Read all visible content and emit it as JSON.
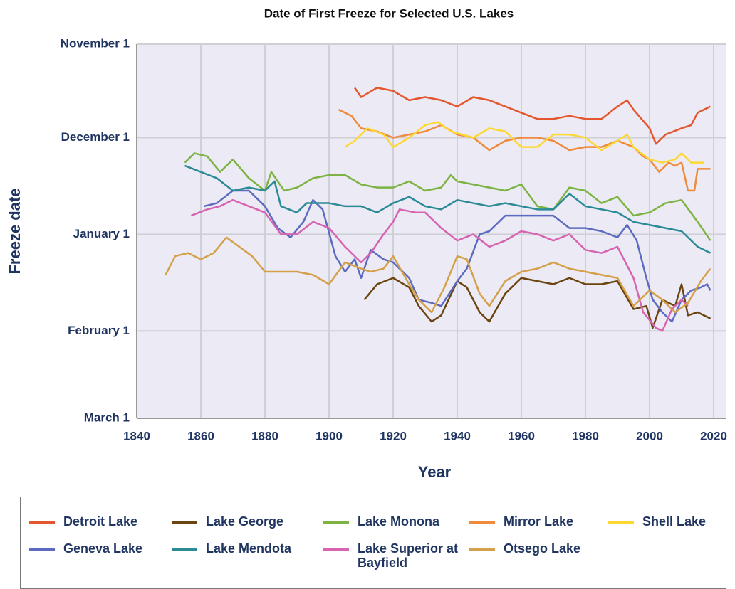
{
  "chart_data": {
    "type": "line",
    "title": "Date of First Freeze for Selected U.S. Lakes",
    "x_label": "Year",
    "y_label": "Freeze date",
    "xlim": [
      1840,
      2024
    ],
    "xticks": [
      1840,
      1860,
      1880,
      1900,
      1920,
      1940,
      1960,
      1980,
      2000,
      2020
    ],
    "ylim": [
      0,
      120
    ],
    "y_inverted": true,
    "yticks": [
      {
        "value": 0,
        "label": "November 1"
      },
      {
        "value": 30,
        "label": "December 1"
      },
      {
        "value": 61,
        "label": "January 1"
      },
      {
        "value": 92,
        "label": "February 1"
      },
      {
        "value": 120,
        "label": "March 1"
      }
    ],
    "grid": true,
    "series": [
      {
        "name": "Detroit Lake",
        "color": "#e4572e",
        "x": [
          1908,
          1910,
          1915,
          1920,
          1925,
          1930,
          1935,
          1940,
          1945,
          1950,
          1955,
          1960,
          1965,
          1970,
          1975,
          1980,
          1985,
          1990,
          1993,
          1995,
          2000,
          2002,
          2005,
          2010,
          2013,
          2015,
          2019
        ],
        "values": [
          14,
          17,
          14,
          15,
          18,
          17,
          18,
          20,
          17,
          18,
          20,
          22,
          24,
          24,
          23,
          24,
          24,
          20,
          18,
          21,
          27,
          32,
          29,
          27,
          26,
          22,
          20
        ]
      },
      {
        "name": "Lake George",
        "color": "#6b4410",
        "x": [
          1911,
          1915,
          1920,
          1925,
          1928,
          1932,
          1935,
          1940,
          1943,
          1947,
          1950,
          1955,
          1960,
          1965,
          1970,
          1975,
          1980,
          1985,
          1990,
          1995,
          1999,
          2001,
          2004,
          2008,
          2010,
          2012,
          2015,
          2019
        ],
        "values": [
          82,
          77,
          75,
          78,
          84,
          89,
          87,
          76,
          78,
          86,
          89,
          80,
          75,
          76,
          77,
          75,
          77,
          77,
          76,
          85,
          84,
          91,
          82,
          84,
          77,
          87,
          86,
          88
        ]
      },
      {
        "name": "Lake Monona",
        "color": "#7cb342",
        "x": [
          1855,
          1858,
          1862,
          1866,
          1870,
          1875,
          1880,
          1882,
          1886,
          1890,
          1895,
          1900,
          1905,
          1910,
          1915,
          1920,
          1925,
          1930,
          1935,
          1938,
          1940,
          1945,
          1950,
          1955,
          1960,
          1965,
          1970,
          1975,
          1980,
          1985,
          1990,
          1995,
          2000,
          2005,
          2010,
          2015,
          2019
        ],
        "values": [
          38,
          35,
          36,
          41,
          37,
          43,
          47,
          41,
          47,
          46,
          43,
          42,
          42,
          45,
          46,
          46,
          44,
          47,
          46,
          42,
          44,
          45,
          46,
          47,
          45,
          52,
          53,
          46,
          47,
          51,
          49,
          55,
          54,
          51,
          50,
          57,
          63
        ]
      },
      {
        "name": "Mirror Lake",
        "color": "#f08a3c",
        "x": [
          1903,
          1907,
          1910,
          1915,
          1920,
          1925,
          1930,
          1935,
          1940,
          1945,
          1950,
          1955,
          1960,
          1965,
          1970,
          1975,
          1980,
          1985,
          1990,
          1995,
          1998,
          2000,
          2003,
          2006,
          2008,
          2010,
          2012,
          2014,
          2015,
          2019
        ],
        "values": [
          21,
          23,
          27,
          28,
          30,
          29,
          28,
          26,
          29,
          30,
          34,
          31,
          30,
          30,
          31,
          34,
          33,
          33,
          31,
          33,
          36,
          37,
          41,
          38,
          39,
          38,
          47,
          47,
          40,
          40
        ]
      },
      {
        "name": "Shell Lake",
        "color": "#fdd835",
        "x": [
          1905,
          1908,
          1912,
          1917,
          1920,
          1925,
          1930,
          1934,
          1938,
          1945,
          1950,
          1955,
          1960,
          1965,
          1970,
          1975,
          1980,
          1985,
          1990,
          1993,
          1995,
          2000,
          2004,
          2008,
          2010,
          2013,
          2017
        ],
        "values": [
          33,
          31,
          27,
          29,
          33,
          30,
          26,
          25,
          28,
          30,
          27,
          28,
          33,
          33,
          29,
          29,
          30,
          34,
          31,
          29,
          33,
          37,
          38,
          37,
          35,
          38,
          38
        ]
      },
      {
        "name": "Geneva Lake",
        "color": "#5c6bc0",
        "x": [
          1861,
          1865,
          1870,
          1875,
          1880,
          1884,
          1888,
          1892,
          1895,
          1898,
          1902,
          1905,
          1908,
          1910,
          1913,
          1917,
          1920,
          1925,
          1928,
          1932,
          1935,
          1940,
          1943,
          1947,
          1950,
          1955,
          1960,
          1965,
          1970,
          1975,
          1980,
          1985,
          1990,
          1993,
          1996,
          1999,
          2001,
          2004,
          2007,
          2010,
          2013,
          2016,
          2018,
          2019
        ],
        "values": [
          52,
          51,
          47,
          47,
          52,
          59,
          62,
          57,
          50,
          53,
          68,
          73,
          69,
          75,
          66,
          69,
          70,
          75,
          82,
          83,
          84,
          76,
          72,
          61,
          60,
          55,
          55,
          55,
          55,
          59,
          59,
          60,
          62,
          58,
          63,
          75,
          82,
          86,
          89,
          82,
          79,
          78,
          77,
          79
        ]
      },
      {
        "name": "Lake Mendota",
        "color": "#2a8a96",
        "x": [
          1855,
          1860,
          1865,
          1870,
          1875,
          1880,
          1883,
          1885,
          1890,
          1893,
          1897,
          1900,
          1905,
          1910,
          1915,
          1920,
          1925,
          1930,
          1935,
          1940,
          1945,
          1950,
          1955,
          1960,
          1965,
          1970,
          1975,
          1980,
          1985,
          1990,
          1995,
          2000,
          2005,
          2010,
          2015,
          2019
        ],
        "values": [
          39,
          41,
          43,
          47,
          46,
          47,
          44,
          52,
          54,
          51,
          51,
          51,
          52,
          52,
          54,
          51,
          49,
          52,
          53,
          50,
          51,
          52,
          51,
          52,
          53,
          53,
          48,
          52,
          53,
          54,
          57,
          58,
          59,
          60,
          65,
          67
        ]
      },
      {
        "name": "Lake Superior at Bayfield",
        "color": "#d664b0",
        "x": [
          1857,
          1862,
          1866,
          1870,
          1875,
          1880,
          1885,
          1890,
          1895,
          1900,
          1905,
          1910,
          1913,
          1917,
          1920,
          1922,
          1927,
          1930,
          1935,
          1940,
          1945,
          1950,
          1955,
          1960,
          1965,
          1970,
          1975,
          1980,
          1985,
          1990,
          1995,
          1998,
          2002,
          2004,
          2007,
          2010,
          2012
        ],
        "values": [
          55,
          53,
          52,
          50,
          52,
          54,
          61,
          61,
          57,
          59,
          65,
          70,
          67,
          61,
          57,
          53,
          54,
          54,
          59,
          63,
          61,
          65,
          63,
          60,
          61,
          63,
          61,
          66,
          67,
          65,
          75,
          86,
          91,
          92,
          85,
          82,
          84
        ]
      },
      {
        "name": "Otsego Lake",
        "color": "#d4a04a",
        "x": [
          1849,
          1852,
          1856,
          1860,
          1864,
          1868,
          1872,
          1876,
          1880,
          1885,
          1890,
          1895,
          1900,
          1905,
          1910,
          1913,
          1917,
          1920,
          1925,
          1928,
          1932,
          1936,
          1940,
          1943,
          1947,
          1950,
          1955,
          1960,
          1965,
          1970,
          1975,
          1980,
          1985,
          1990,
          1995,
          2000,
          2004,
          2008,
          2012,
          2016,
          2019
        ],
        "values": [
          74,
          68,
          67,
          69,
          67,
          62,
          65,
          68,
          73,
          73,
          73,
          74,
          77,
          70,
          72,
          73,
          72,
          68,
          77,
          82,
          86,
          78,
          68,
          69,
          80,
          84,
          76,
          73,
          72,
          70,
          72,
          73,
          74,
          75,
          84,
          79,
          82,
          86,
          83,
          76,
          72
        ]
      }
    ]
  }
}
